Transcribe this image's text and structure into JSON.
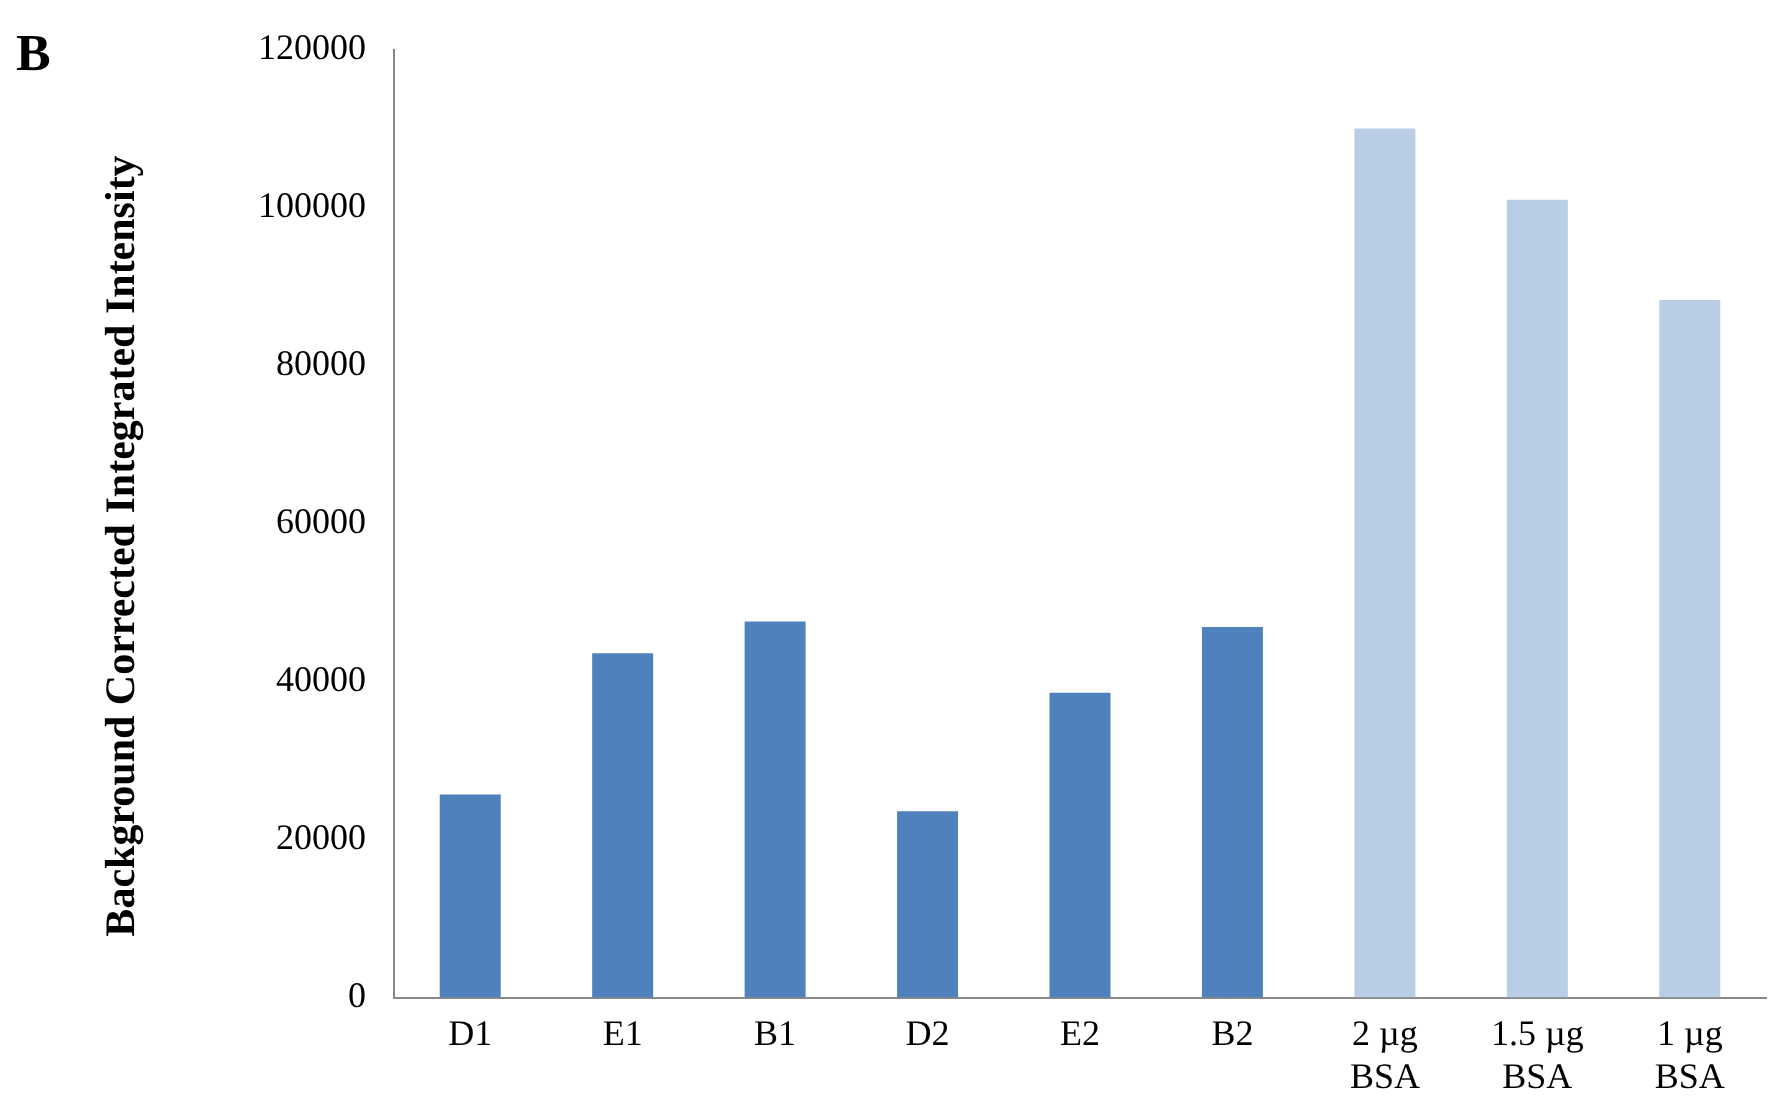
{
  "chart_data": {
    "type": "bar",
    "ylabel": "Background Corrected Integrated Intensity",
    "annotations": [
      "B"
    ],
    "categories": [
      "D1",
      "E1",
      "B1",
      "D2",
      "E2",
      "B2",
      "2 µg BSA",
      "1.5 µg BSA",
      "1 µg BSA"
    ],
    "values": [
      25700,
      43600,
      47600,
      23600,
      38600,
      46900,
      110000,
      101000,
      88300
    ],
    "colors": [
      "#4f81bd",
      "#4f81bd",
      "#4f81bd",
      "#4f81bd",
      "#4f81bd",
      "#4f81bd",
      "#b9cde5",
      "#b9cde5",
      "#b9cde5"
    ],
    "ylim": [
      0,
      120000
    ],
    "yticks": [
      0,
      20000,
      40000,
      60000,
      80000,
      100000,
      120000
    ],
    "grid": false,
    "legend": false
  }
}
